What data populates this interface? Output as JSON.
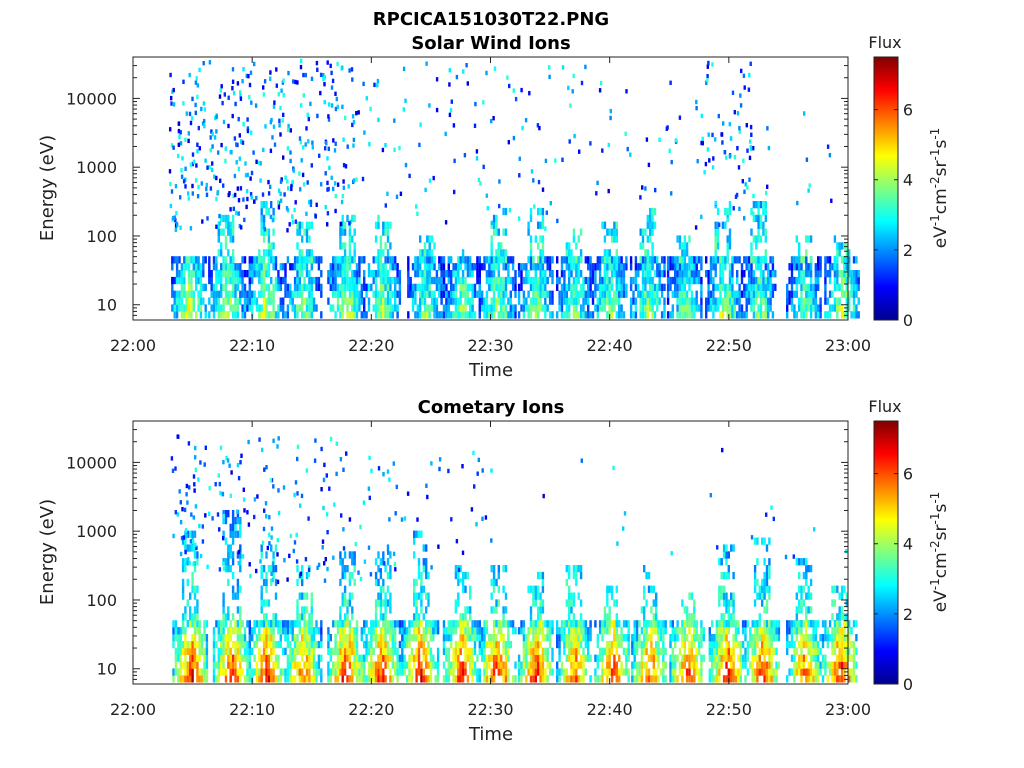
{
  "figure": {
    "filename": "RPCICA151030T22.PNG"
  },
  "chart_data": [
    {
      "type": "heatmap",
      "title": "Solar Wind Ions",
      "xlabel": "Time",
      "ylabel": "Energy (eV)",
      "x_ticks": [
        "22:00",
        "22:10",
        "22:20",
        "22:30",
        "22:40",
        "22:50",
        "23:00"
      ],
      "xlim_minutes": [
        0,
        60
      ],
      "y_scale": "log",
      "ylim": [
        6,
        40000
      ],
      "y_ticks": [
        10,
        100,
        1000,
        10000
      ],
      "colorbar": {
        "label": "Flux",
        "unit": "eV-1cm-2sr-1s-1",
        "range": [
          0,
          7.5
        ],
        "ticks": [
          0,
          2,
          4,
          6
        ],
        "colormap": "jet"
      },
      "bursts": [
        {
          "t": 4.7,
          "energy_max": 40,
          "peak": 4.6
        },
        {
          "t": 7.8,
          "energy_max": 200,
          "peak": 4.4
        },
        {
          "t": 11.0,
          "energy_max": 300,
          "peak": 4.4
        },
        {
          "t": 14.2,
          "energy_max": 150,
          "peak": 4.0
        },
        {
          "t": 17.8,
          "energy_max": 160,
          "peak": 4.4
        },
        {
          "t": 20.8,
          "energy_max": 200,
          "peak": 4.2
        },
        {
          "t": 24.5,
          "energy_max": 80,
          "peak": 3.8
        },
        {
          "t": 27.5,
          "energy_max": 60,
          "peak": 4.0
        },
        {
          "t": 30.5,
          "energy_max": 250,
          "peak": 4.2
        },
        {
          "t": 33.8,
          "energy_max": 250,
          "peak": 4.0
        },
        {
          "t": 37.0,
          "energy_max": 120,
          "peak": 3.8
        },
        {
          "t": 40.0,
          "energy_max": 150,
          "peak": 4.0
        },
        {
          "t": 43.2,
          "energy_max": 250,
          "peak": 4.0
        },
        {
          "t": 46.3,
          "energy_max": 100,
          "peak": 3.8
        },
        {
          "t": 49.5,
          "energy_max": 300,
          "peak": 4.2
        },
        {
          "t": 52.5,
          "energy_max": 300,
          "peak": 3.8
        },
        {
          "t": 56.3,
          "energy_max": 80,
          "peak": 3.6
        },
        {
          "t": 59.5,
          "energy_max": 80,
          "peak": 4.4
        }
      ],
      "sparse_high_energy": [
        {
          "t_from": 3.0,
          "t_to": 18.5,
          "energy_from": 100,
          "energy_to": 30000,
          "count": 380
        },
        {
          "t_from": 18.5,
          "t_to": 38.0,
          "energy_from": 100,
          "energy_to": 30000,
          "count": 110
        },
        {
          "t_from": 38.0,
          "t_to": 47.0,
          "energy_from": 200,
          "energy_to": 15000,
          "count": 30
        },
        {
          "t_from": 47.0,
          "t_to": 52.0,
          "energy_from": 100,
          "energy_to": 30000,
          "count": 80
        },
        {
          "t_from": 52.0,
          "t_to": 60.0,
          "energy_from": 200,
          "energy_to": 10000,
          "count": 12
        }
      ]
    },
    {
      "type": "heatmap",
      "title": "Cometary Ions",
      "xlabel": "Time",
      "ylabel": "Energy (eV)",
      "x_ticks": [
        "22:00",
        "22:10",
        "22:20",
        "22:30",
        "22:40",
        "22:50",
        "23:00"
      ],
      "xlim_minutes": [
        0,
        60
      ],
      "y_scale": "log",
      "ylim": [
        6,
        40000
      ],
      "y_ticks": [
        10,
        100,
        1000,
        10000
      ],
      "colorbar": {
        "label": "Flux",
        "unit": "eV-1cm-2sr-1s-1",
        "range": [
          0,
          7.5
        ],
        "ticks": [
          0,
          2,
          4,
          6
        ],
        "colormap": "jet"
      },
      "bursts": [
        {
          "t": 4.8,
          "energy_max": 800,
          "peak": 6.8
        },
        {
          "t": 8.2,
          "energy_max": 2000,
          "peak": 6.6
        },
        {
          "t": 11.2,
          "energy_max": 600,
          "peak": 6.6
        },
        {
          "t": 14.2,
          "energy_max": 300,
          "peak": 6.2
        },
        {
          "t": 17.8,
          "energy_max": 500,
          "peak": 6.8
        },
        {
          "t": 20.8,
          "energy_max": 600,
          "peak": 6.6
        },
        {
          "t": 24.0,
          "energy_max": 800,
          "peak": 6.8
        },
        {
          "t": 27.5,
          "energy_max": 300,
          "peak": 6.6
        },
        {
          "t": 30.5,
          "energy_max": 300,
          "peak": 6.8
        },
        {
          "t": 33.8,
          "energy_max": 250,
          "peak": 6.8
        },
        {
          "t": 37.0,
          "energy_max": 300,
          "peak": 6.2
        },
        {
          "t": 40.2,
          "energy_max": 150,
          "peak": 6.6
        },
        {
          "t": 43.3,
          "energy_max": 300,
          "peak": 6.4
        },
        {
          "t": 46.5,
          "energy_max": 150,
          "peak": 6.6
        },
        {
          "t": 49.8,
          "energy_max": 600,
          "peak": 6.8
        },
        {
          "t": 52.8,
          "energy_max": 700,
          "peak": 6.6
        },
        {
          "t": 56.3,
          "energy_max": 400,
          "peak": 6.2
        },
        {
          "t": 59.3,
          "energy_max": 150,
          "peak": 6.8
        }
      ],
      "sparse_high_energy": [
        {
          "t_from": 3.0,
          "t_to": 18.5,
          "energy_from": 150,
          "energy_to": 20000,
          "count": 180
        },
        {
          "t_from": 18.5,
          "t_to": 30.0,
          "energy_from": 150,
          "energy_to": 12000,
          "count": 55
        },
        {
          "t_from": 30.0,
          "t_to": 50.0,
          "energy_from": 300,
          "energy_to": 20000,
          "count": 10
        },
        {
          "t_from": 50.0,
          "t_to": 60.0,
          "energy_from": 300,
          "energy_to": 10000,
          "count": 8
        }
      ]
    }
  ]
}
